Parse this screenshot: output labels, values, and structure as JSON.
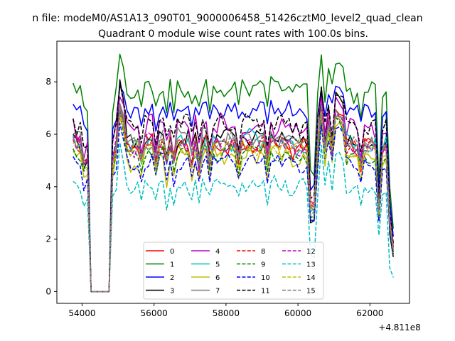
{
  "figure": {
    "title_line1": "n file: modeM0/AS1A13_090T01_9000006458_51426cztM0_level2_quad_clean",
    "title_line2": "Quadrant 0 module wise count rates with 100.0s bins.",
    "x_offset_label": "+4.811e8"
  },
  "chart_data": {
    "type": "line",
    "title": "Quadrant 0 module wise count rates with 100.0s bins.",
    "xlabel": "",
    "ylabel": "",
    "x_offset": 481100000,
    "xlim": [
      53300,
      63100
    ],
    "ylim": [
      -0.45,
      9.55
    ],
    "x_ticks": [
      54000,
      56000,
      58000,
      60000,
      62000
    ],
    "x_tick_labels": [
      "54000",
      "56000",
      "58000",
      "60000",
      "62000"
    ],
    "y_ticks": [
      0,
      2,
      4,
      6,
      8
    ],
    "y_tick_labels": [
      "0",
      "2",
      "4",
      "6",
      "8"
    ],
    "grid": false,
    "legend_position": "lower-center",
    "legend_columns": 4,
    "x_start": 53750,
    "x_step": 100,
    "gap_indices": [
      5,
      6,
      7,
      8,
      9,
      10
    ],
    "dip_indices": [
      19,
      28,
      35,
      38,
      46,
      54,
      67,
      71,
      80,
      88,
      93,
      99,
      104,
      113,
      116,
      123,
      125,
      128
    ],
    "series": [
      {
        "name": "0",
        "color": "#ff0000",
        "dash": "solid",
        "base": 5.5,
        "amp": 0.35,
        "peak": 7.3,
        "end": 2.8
      },
      {
        "name": "1",
        "color": "#008000",
        "dash": "solid",
        "base": 7.6,
        "amp": 0.35,
        "peak": 9.1,
        "end": 4.0
      },
      {
        "name": "2",
        "color": "#0000ff",
        "dash": "solid",
        "base": 6.85,
        "amp": 0.3,
        "peak": 8.0,
        "end": 3.5
      },
      {
        "name": "3",
        "color": "#000000",
        "dash": "solid",
        "base": 5.7,
        "amp": 0.3,
        "peak": 8.2,
        "end": 2.2
      },
      {
        "name": "4",
        "color": "#bf00bf",
        "dash": "solid",
        "base": 6.2,
        "amp": 0.4,
        "peak": 7.6,
        "end": 3.0
      },
      {
        "name": "5",
        "color": "#00bfbf",
        "dash": "solid",
        "base": 5.6,
        "amp": 0.35,
        "peak": 7.0,
        "end": 2.6
      },
      {
        "name": "6",
        "color": "#bfbf00",
        "dash": "solid",
        "base": 5.0,
        "amp": 0.35,
        "peak": 6.8,
        "end": 2.4
      },
      {
        "name": "7",
        "color": "#808080",
        "dash": "solid",
        "base": 5.65,
        "amp": 0.35,
        "peak": 7.2,
        "end": 2.7
      },
      {
        "name": "8",
        "color": "#ff0000",
        "dash": "dashed",
        "base": 5.5,
        "amp": 0.3,
        "peak": 7.0,
        "end": 2.8
      },
      {
        "name": "9",
        "color": "#008000",
        "dash": "dashed",
        "base": 5.15,
        "amp": 0.3,
        "peak": 6.9,
        "end": 2.5
      },
      {
        "name": "10",
        "color": "#0000ff",
        "dash": "dashed",
        "base": 4.85,
        "amp": 0.3,
        "peak": 6.6,
        "end": 2.4
      },
      {
        "name": "11",
        "color": "#000000",
        "dash": "dashed",
        "base": 6.3,
        "amp": 0.3,
        "peak": 8.0,
        "end": 3.1
      },
      {
        "name": "12",
        "color": "#bf00bf",
        "dash": "dashed",
        "base": 5.5,
        "amp": 0.3,
        "peak": 7.1,
        "end": 2.8
      },
      {
        "name": "13",
        "color": "#00bfbf",
        "dash": "dashed",
        "base": 3.9,
        "amp": 0.3,
        "peak": 5.7,
        "end": 0.9
      },
      {
        "name": "14",
        "color": "#bfbf00",
        "dash": "dashed",
        "base": 5.35,
        "amp": 0.3,
        "peak": 6.9,
        "end": 2.7
      },
      {
        "name": "15",
        "color": "#808080",
        "dash": "dashed",
        "base": 5.6,
        "amp": 0.3,
        "peak": 7.0,
        "end": 2.6
      }
    ]
  }
}
